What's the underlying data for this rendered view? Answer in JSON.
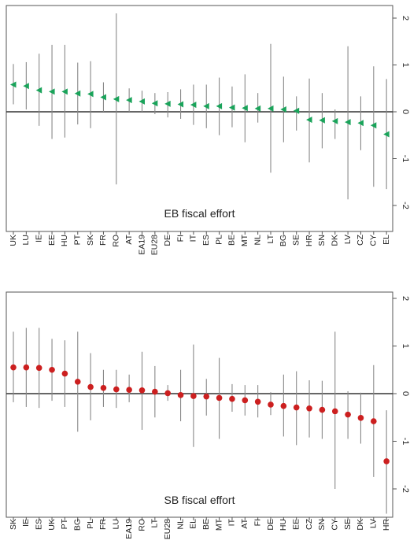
{
  "chart_data": [
    {
      "type": "scatter",
      "title": "EB fiscal effort",
      "ylim": [
        -2.4,
        2.0
      ],
      "yticks": [
        2,
        1,
        0,
        -1,
        -2
      ],
      "grid": false,
      "marker": "triangle-left",
      "marker_color": "#1aa35a",
      "interval_color": "#888888",
      "categories": [
        "UK",
        "LU",
        "IE",
        "EE",
        "HU",
        "PT",
        "SK",
        "FR",
        "RO",
        "AT",
        "EA19",
        "EU28",
        "DE",
        "FI",
        "IT",
        "ES",
        "PL",
        "BE",
        "MT",
        "NL",
        "LT",
        "BG",
        "SE",
        "HR",
        "SN",
        "DK",
        "LV",
        "CZ",
        "CY",
        "EL"
      ],
      "values": [
        0.58,
        0.55,
        0.46,
        0.43,
        0.43,
        0.39,
        0.38,
        0.31,
        0.27,
        0.25,
        0.22,
        0.18,
        0.17,
        0.16,
        0.15,
        0.12,
        0.12,
        0.09,
        0.08,
        0.07,
        0.07,
        0.05,
        0.02,
        -0.17,
        -0.18,
        -0.2,
        -0.22,
        -0.24,
        -0.29,
        -0.48
      ],
      "lower": [
        0.16,
        0.05,
        -0.3,
        -0.58,
        -0.55,
        -0.27,
        -0.35,
        0.0,
        -1.55,
        0.0,
        0.0,
        -0.05,
        -0.12,
        -0.15,
        -0.28,
        -0.35,
        -0.5,
        -0.33,
        -0.65,
        -0.23,
        -1.3,
        -0.65,
        -0.4,
        -1.08,
        -0.78,
        -0.58,
        -1.87,
        -0.82,
        -1.6,
        -1.65
      ],
      "upper": [
        1.02,
        1.06,
        1.24,
        1.43,
        1.43,
        1.05,
        1.08,
        0.63,
        2.1,
        0.5,
        0.45,
        0.4,
        0.42,
        0.48,
        0.58,
        0.58,
        0.73,
        0.54,
        0.8,
        0.4,
        1.45,
        0.75,
        0.33,
        0.71,
        0.4,
        0.05,
        1.4,
        0.33,
        0.97,
        0.7
      ]
    },
    {
      "type": "scatter",
      "title": "SB fiscal effort",
      "ylim": [
        -2.6,
        2.1
      ],
      "yticks": [
        2,
        1,
        0,
        -1,
        -2
      ],
      "grid": false,
      "marker": "circle",
      "marker_color": "#cc1f1f",
      "interval_color": "#888888",
      "categories": [
        "SK",
        "IE",
        "ES",
        "UK",
        "PT",
        "BG",
        "PL",
        "FR",
        "LU",
        "EA19",
        "RO",
        "LT",
        "EU28",
        "NL",
        "EL",
        "BE",
        "MT",
        "IT",
        "AT",
        "FI",
        "DE",
        "HU",
        "EE",
        "CZ",
        "SN",
        "CY",
        "SE",
        "DK",
        "LV",
        "HR"
      ],
      "values": [
        0.55,
        0.55,
        0.54,
        0.5,
        0.42,
        0.25,
        0.14,
        0.12,
        0.09,
        0.08,
        0.07,
        0.04,
        0.01,
        -0.03,
        -0.05,
        -0.06,
        -0.09,
        -0.11,
        -0.14,
        -0.17,
        -0.23,
        -0.26,
        -0.29,
        -0.31,
        -0.34,
        -0.37,
        -0.44,
        -0.51,
        -0.58,
        -1.42
      ],
      "lower": [
        -0.18,
        -0.28,
        -0.3,
        -0.15,
        -0.28,
        -0.8,
        -0.56,
        -0.28,
        -0.3,
        -0.18,
        -0.76,
        -0.5,
        -0.15,
        -0.58,
        -1.12,
        -0.46,
        -0.95,
        -0.38,
        -0.46,
        -0.5,
        -0.45,
        -0.9,
        -1.08,
        -0.92,
        -0.95,
        -2.0,
        -0.95,
        -1.05,
        -1.75,
        -2.52
      ],
      "upper": [
        1.3,
        1.38,
        1.38,
        1.15,
        1.12,
        1.3,
        0.85,
        0.5,
        0.5,
        0.4,
        0.88,
        0.58,
        0.18,
        0.5,
        1.03,
        0.31,
        0.75,
        0.2,
        0.18,
        0.18,
        0.03,
        0.4,
        0.47,
        0.28,
        0.27,
        1.3,
        0.05,
        0.02,
        0.6,
        -0.35
      ]
    }
  ]
}
